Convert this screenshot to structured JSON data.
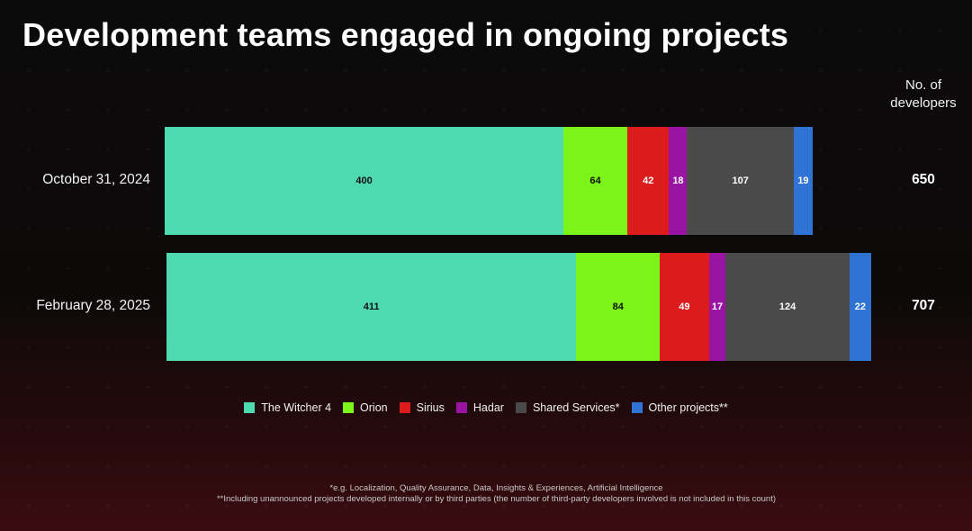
{
  "page": {
    "title": "Development teams engaged in ongoing projects",
    "column_header": [
      "No. of",
      "developers"
    ],
    "footnotes": [
      "*e.g. Localization, Quality Assurance, Data, Insights & Experiences, Artificial Intelligence",
      "**Including unannounced projects developed internally or by third parties (the number of third-party developers involved is not included in this count)"
    ]
  },
  "chart_data": {
    "type": "bar",
    "orientation": "horizontal",
    "stacked": true,
    "title": "Development teams engaged in ongoing projects",
    "categories": [
      "October 31, 2024",
      "February 28, 2025"
    ],
    "totals": [
      650,
      707
    ],
    "series": [
      {
        "name": "The Witcher 4",
        "color": "#4fd9b0",
        "label_color": "#111111",
        "values": [
          400,
          411
        ]
      },
      {
        "name": "Orion",
        "color": "#7cf41a",
        "label_color": "#111111",
        "values": [
          64,
          84
        ]
      },
      {
        "name": "Sirius",
        "color": "#dc1b1b",
        "label_color": "#ffffff",
        "values": [
          42,
          49
        ]
      },
      {
        "name": "Hadar",
        "color": "#9a14a4",
        "label_color": "#ffffff",
        "values": [
          18,
          17
        ]
      },
      {
        "name": "Shared Services*",
        "color": "#4a4a4a",
        "label_color": "#ffffff",
        "values": [
          107,
          124
        ]
      },
      {
        "name": "Other projects**",
        "color": "#2f74d4",
        "label_color": "#ffffff",
        "values": [
          19,
          22
        ]
      }
    ],
    "legend_position": "bottom",
    "grid": false
  }
}
